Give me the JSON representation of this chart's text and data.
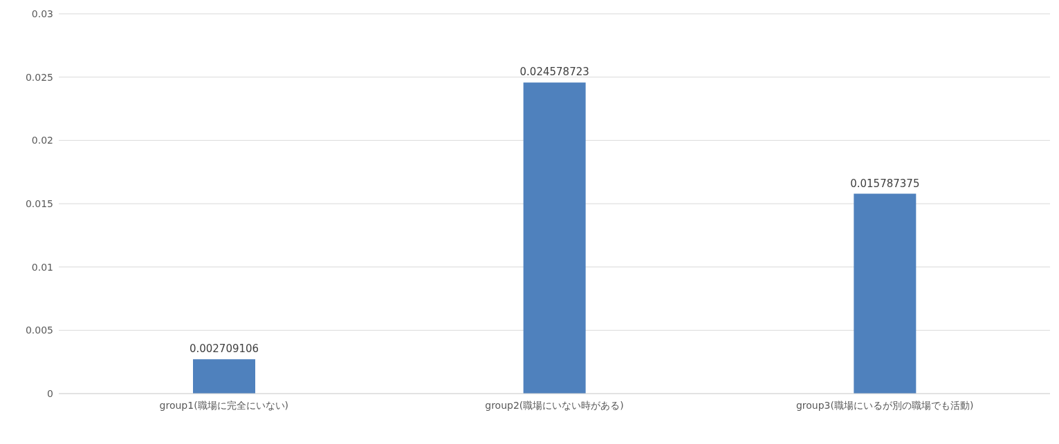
{
  "chart_data": {
    "type": "bar",
    "categories": [
      "group1(職場に完全にいない)",
      "group2(職場にいない時がある)",
      "group3(職場にいるが別の職場でも活動)"
    ],
    "values": [
      0.002709106,
      0.024578723,
      0.015787375
    ],
    "color": "#4f81bd",
    "ylim": [
      0,
      0.03
    ],
    "yticks": [
      0,
      0.005,
      0.01,
      0.015,
      0.02,
      0.025,
      0.03
    ],
    "grid": "y",
    "data_labels": true,
    "legend": false
  }
}
